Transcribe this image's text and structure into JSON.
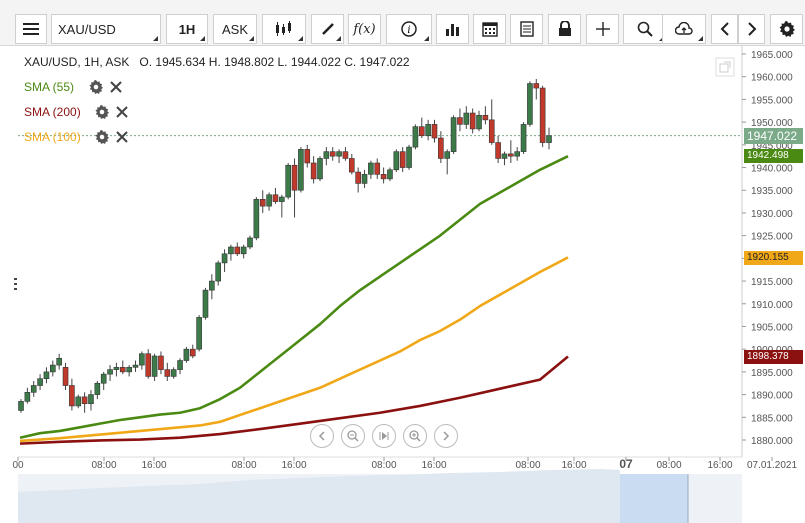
{
  "toolbar": {
    "menu_icon": "hamburger-icon",
    "symbol": "XAU/USD",
    "timeframe": "1H",
    "price_type": "ASK",
    "buttons": [
      "candles-icon",
      "draw-pen-icon",
      "function-icon",
      "info-icon",
      "bar-chart-icon",
      "calendar-icon",
      "report-icon",
      "lock-icon",
      "crosshair-icon",
      "zoom-icon",
      "cloud-upload-icon",
      "chevron-left-icon",
      "chevron-right-icon",
      "gear-icon"
    ],
    "function_label": "f(x)"
  },
  "header": {
    "instrument": "XAU/USD, 1H, ASK",
    "ohlc": "O. 1945.634 H. 1948.802 L. 1944.022 C. 1947.022"
  },
  "legend": [
    {
      "label": "SMA (55)",
      "color": "#4a8a12"
    },
    {
      "label": "SMA (200)",
      "color": "#8b1010"
    },
    {
      "label": "SMA (100)",
      "color": "#f0a818"
    }
  ],
  "badges": [
    {
      "text": "1947.022",
      "value": 1947.022,
      "color": "#7aaa88"
    },
    {
      "text": "1942.498",
      "value": 1942.498,
      "color": "#4a8a12"
    },
    {
      "text": "1920.155",
      "value": 1920.155,
      "color": "#f0a818",
      "text_color": "#222"
    },
    {
      "text": "1898.378",
      "value": 1898.378,
      "color": "#8b1010"
    }
  ],
  "chart_data": {
    "type": "candlestick",
    "y_axis": {
      "min": 1880,
      "max": 1965,
      "ticks": [
        "1880.000",
        "1885.000",
        "1890.000",
        "1895.000",
        "1900.000",
        "1905.000",
        "1910.000",
        "1915.000",
        "1920.000",
        "1925.000",
        "1930.000",
        "1935.000",
        "1940.000",
        "1945.000",
        "1950.000",
        "1955.000",
        "1960.000",
        "1965.000"
      ]
    },
    "x_axis": {
      "ticks": [
        "00",
        "08:00",
        "16:00",
        "08:00",
        "16:00",
        "08:00",
        "16:00",
        "08:00",
        "16:00",
        "07",
        "08:00",
        "16:00",
        "07.01.2021"
      ]
    },
    "current_price": 1947.022,
    "candles": [
      [
        1886.5,
        1889.0,
        1886.0,
        1888.5
      ],
      [
        1888.5,
        1891.5,
        1888.0,
        1890.5
      ],
      [
        1890.5,
        1893.0,
        1889.5,
        1892.0
      ],
      [
        1892.0,
        1894.5,
        1891.0,
        1893.5
      ],
      [
        1893.5,
        1896.0,
        1892.5,
        1895.0
      ],
      [
        1895.0,
        1897.5,
        1894.0,
        1896.5
      ],
      [
        1896.5,
        1899.0,
        1895.5,
        1898.0
      ],
      [
        1896.0,
        1897.0,
        1891.0,
        1892.0
      ],
      [
        1892.0,
        1893.5,
        1886.5,
        1887.5
      ],
      [
        1887.5,
        1890.0,
        1887.0,
        1889.5
      ],
      [
        1889.5,
        1890.5,
        1886.0,
        1888.0
      ],
      [
        1888.0,
        1891.0,
        1886.5,
        1890.0
      ],
      [
        1890.0,
        1893.0,
        1889.0,
        1892.5
      ],
      [
        1892.5,
        1895.0,
        1891.0,
        1894.5
      ],
      [
        1894.5,
        1896.5,
        1893.0,
        1895.5
      ],
      [
        1895.5,
        1897.0,
        1894.0,
        1896.0
      ],
      [
        1896.0,
        1897.5,
        1894.5,
        1895.0
      ],
      [
        1895.0,
        1896.5,
        1894.0,
        1896.0
      ],
      [
        1896.0,
        1897.5,
        1895.0,
        1896.5
      ],
      [
        1896.5,
        1899.5,
        1895.5,
        1899.0
      ],
      [
        1899.0,
        1900.0,
        1893.5,
        1894.0
      ],
      [
        1894.0,
        1899.0,
        1893.0,
        1898.5
      ],
      [
        1898.5,
        1899.5,
        1894.5,
        1895.5
      ],
      [
        1895.5,
        1897.0,
        1893.0,
        1894.0
      ],
      [
        1894.0,
        1896.0,
        1893.5,
        1895.5
      ],
      [
        1895.5,
        1898.0,
        1894.5,
        1897.5
      ],
      [
        1897.5,
        1900.5,
        1897.0,
        1900.0
      ],
      [
        1900.0,
        1901.0,
        1898.0,
        1898.5
      ],
      [
        1900.0,
        1907.5,
        1899.5,
        1907.0
      ],
      [
        1907.0,
        1913.5,
        1906.5,
        1913.0
      ],
      [
        1913.0,
        1916.5,
        1911.0,
        1915.0
      ],
      [
        1915.0,
        1919.5,
        1914.0,
        1919.0
      ],
      [
        1919.0,
        1922.0,
        1917.0,
        1921.0
      ],
      [
        1921.0,
        1923.0,
        1919.5,
        1922.5
      ],
      [
        1922.5,
        1923.5,
        1920.5,
        1921.0
      ],
      [
        1921.0,
        1923.0,
        1920.0,
        1922.5
      ],
      [
        1922.5,
        1925.0,
        1922.0,
        1924.5
      ],
      [
        1924.5,
        1933.5,
        1924.0,
        1933.0
      ],
      [
        1933.0,
        1935.0,
        1930.0,
        1931.5
      ],
      [
        1931.5,
        1934.5,
        1930.5,
        1934.0
      ],
      [
        1934.0,
        1935.5,
        1932.0,
        1932.5
      ],
      [
        1932.5,
        1934.0,
        1929.0,
        1933.5
      ],
      [
        1933.5,
        1941.0,
        1933.0,
        1940.5
      ],
      [
        1940.5,
        1942.0,
        1929.0,
        1935.0
      ],
      [
        1935.0,
        1944.5,
        1934.5,
        1944.0
      ],
      [
        1944.0,
        1945.0,
        1940.0,
        1941.0
      ],
      [
        1941.0,
        1942.5,
        1936.5,
        1937.5
      ],
      [
        1937.5,
        1942.5,
        1937.0,
        1942.0
      ],
      [
        1942.0,
        1944.5,
        1940.5,
        1943.5
      ],
      [
        1943.5,
        1944.5,
        1941.5,
        1942.5
      ],
      [
        1942.5,
        1944.0,
        1941.0,
        1943.5
      ],
      [
        1943.5,
        1944.5,
        1941.5,
        1942.0
      ],
      [
        1942.0,
        1943.0,
        1938.5,
        1939.0
      ],
      [
        1939.0,
        1940.0,
        1934.5,
        1936.5
      ],
      [
        1936.5,
        1939.5,
        1935.5,
        1938.5
      ],
      [
        1938.5,
        1941.5,
        1937.5,
        1941.0
      ],
      [
        1941.0,
        1942.0,
        1937.5,
        1938.5
      ],
      [
        1938.5,
        1940.0,
        1936.5,
        1937.5
      ],
      [
        1937.5,
        1940.0,
        1937.0,
        1939.5
      ],
      [
        1939.5,
        1944.0,
        1939.0,
        1943.5
      ],
      [
        1943.5,
        1944.5,
        1939.0,
        1940.0
      ],
      [
        1940.0,
        1945.0,
        1939.5,
        1944.5
      ],
      [
        1944.5,
        1949.5,
        1944.0,
        1949.0
      ],
      [
        1949.0,
        1951.0,
        1946.5,
        1947.0
      ],
      [
        1947.0,
        1950.5,
        1946.0,
        1949.5
      ],
      [
        1949.5,
        1950.5,
        1945.5,
        1946.5
      ],
      [
        1946.5,
        1948.0,
        1941.0,
        1942.0
      ],
      [
        1942.0,
        1944.0,
        1938.5,
        1943.5
      ],
      [
        1943.5,
        1951.5,
        1943.0,
        1951.0
      ],
      [
        1951.0,
        1953.0,
        1948.0,
        1949.5
      ],
      [
        1949.5,
        1953.5,
        1948.5,
        1952.0
      ],
      [
        1952.0,
        1953.0,
        1947.5,
        1948.5
      ],
      [
        1948.5,
        1952.5,
        1948.0,
        1951.5
      ],
      [
        1951.5,
        1953.5,
        1949.5,
        1950.5
      ],
      [
        1950.5,
        1955.0,
        1945.0,
        1945.5
      ],
      [
        1945.5,
        1947.0,
        1941.0,
        1942.0
      ],
      [
        1942.0,
        1943.5,
        1940.5,
        1943.0
      ],
      [
        1943.0,
        1946.0,
        1941.0,
        1942.5
      ],
      [
        1942.5,
        1944.5,
        1941.5,
        1943.5
      ],
      [
        1943.5,
        1950.0,
        1943.0,
        1949.5
      ],
      [
        1949.5,
        1959.0,
        1949.0,
        1958.5
      ],
      [
        1958.5,
        1959.5,
        1955.0,
        1957.5
      ],
      [
        1957.5,
        1958.0,
        1944.5,
        1945.5
      ],
      [
        1945.5,
        1948.8,
        1944.0,
        1947.0
      ]
    ],
    "series": [
      {
        "name": "SMA (55)",
        "color": "#4a8a12",
        "values": [
          [
            0,
            1880.5
          ],
          [
            20,
            1881.5
          ],
          [
            40,
            1882.0
          ],
          [
            60,
            1882.8
          ],
          [
            80,
            1883.6
          ],
          [
            100,
            1884.4
          ],
          [
            120,
            1885.0
          ],
          [
            140,
            1885.6
          ],
          [
            160,
            1886.0
          ],
          [
            180,
            1887.0
          ],
          [
            200,
            1889.0
          ],
          [
            220,
            1891.5
          ],
          [
            240,
            1895.0
          ],
          [
            260,
            1898.5
          ],
          [
            280,
            1902.0
          ],
          [
            300,
            1905.5
          ],
          [
            320,
            1909.5
          ],
          [
            340,
            1913.0
          ],
          [
            360,
            1916.0
          ],
          [
            380,
            1919.0
          ],
          [
            400,
            1922.0
          ],
          [
            420,
            1925.0
          ],
          [
            440,
            1928.5
          ],
          [
            460,
            1932.0
          ],
          [
            480,
            1934.5
          ],
          [
            500,
            1937.0
          ],
          [
            520,
            1939.5
          ],
          [
            548,
            1942.5
          ]
        ]
      },
      {
        "name": "SMA (100)",
        "color": "#f0a818",
        "values": [
          [
            0,
            1879.8
          ],
          [
            40,
            1880.4
          ],
          [
            80,
            1881.2
          ],
          [
            120,
            1882.0
          ],
          [
            160,
            1882.8
          ],
          [
            180,
            1883.2
          ],
          [
            200,
            1884.0
          ],
          [
            220,
            1885.5
          ],
          [
            240,
            1887.0
          ],
          [
            260,
            1888.5
          ],
          [
            280,
            1890.0
          ],
          [
            300,
            1891.5
          ],
          [
            320,
            1893.5
          ],
          [
            340,
            1895.5
          ],
          [
            360,
            1897.5
          ],
          [
            380,
            1899.5
          ],
          [
            400,
            1902.0
          ],
          [
            420,
            1904.0
          ],
          [
            440,
            1906.5
          ],
          [
            460,
            1909.5
          ],
          [
            480,
            1912.0
          ],
          [
            500,
            1914.5
          ],
          [
            520,
            1917.0
          ],
          [
            548,
            1920.2
          ]
        ]
      },
      {
        "name": "SMA (200)",
        "color": "#8b1010",
        "values": [
          [
            0,
            1879.2
          ],
          [
            40,
            1879.6
          ],
          [
            80,
            1879.9
          ],
          [
            120,
            1880.1
          ],
          [
            160,
            1880.5
          ],
          [
            200,
            1881.3
          ],
          [
            240,
            1882.4
          ],
          [
            280,
            1883.6
          ],
          [
            320,
            1884.8
          ],
          [
            360,
            1886.0
          ],
          [
            400,
            1887.5
          ],
          [
            440,
            1889.3
          ],
          [
            480,
            1891.3
          ],
          [
            520,
            1893.3
          ],
          [
            548,
            1898.4
          ]
        ]
      }
    ]
  }
}
